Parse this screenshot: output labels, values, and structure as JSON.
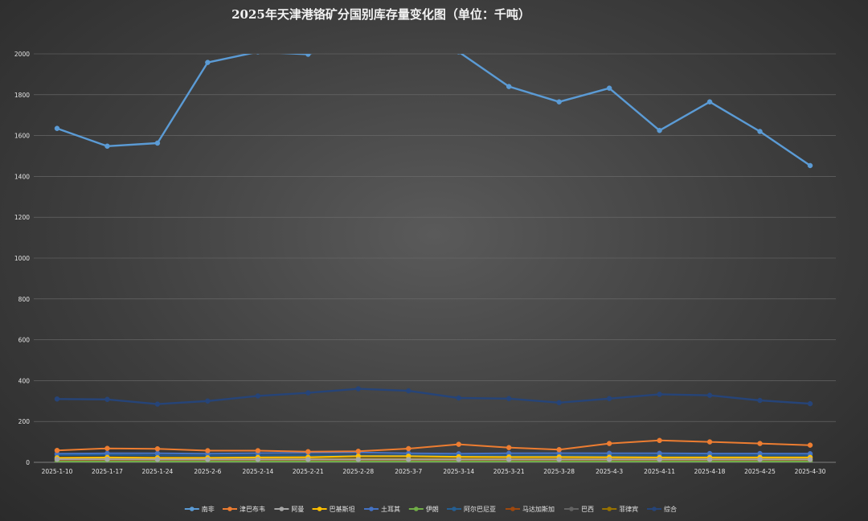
{
  "chart_data": {
    "type": "line",
    "title": "2025年天津港铬矿分国别库存量变化图（单位：千吨）",
    "xlabel": "",
    "ylabel": "",
    "ylim": [
      0,
      2000
    ],
    "yticks": [
      0,
      200,
      400,
      600,
      800,
      1000,
      1200,
      1400,
      1600,
      1800,
      2000
    ],
    "grid": true,
    "legend_position": "bottom",
    "categories": [
      "2025-1-10",
      "2025-1-17",
      "2025-1-24",
      "2025-2-6",
      "2025-2-14",
      "2025-2-21",
      "2025-2-28",
      "2025-3-7",
      "2025-3-14",
      "2025-3-21",
      "2025-3-28",
      "2025-4-3",
      "2025-4-11",
      "2025-4-18",
      "2025-4-25",
      "2025-4-30"
    ],
    "series": [
      {
        "name": "南非",
        "color": "#5b9bd5",
        "values": [
          1635,
          1548,
          1563,
          1958,
          2010,
          1998,
          2080,
          2060,
          2010,
          1840,
          1765,
          1832,
          1625,
          1765,
          1620,
          1453
        ]
      },
      {
        "name": "津巴布韦",
        "color": "#ed7d31",
        "values": [
          58,
          68,
          66,
          57,
          57,
          52,
          54,
          67,
          88,
          72,
          62,
          92,
          107,
          100,
          92,
          84
        ]
      },
      {
        "name": "阿曼",
        "color": "#a5a5a5",
        "values": [
          15,
          15,
          14,
          14,
          14,
          14,
          14,
          14,
          14,
          14,
          14,
          14,
          14,
          14,
          14,
          14
        ]
      },
      {
        "name": "巴基斯坦",
        "color": "#ffc000",
        "values": [
          22,
          24,
          22,
          22,
          24,
          25,
          30,
          30,
          27,
          26,
          26,
          25,
          24,
          24,
          24,
          24
        ]
      },
      {
        "name": "土耳其",
        "color": "#4472c4",
        "values": [
          42,
          44,
          44,
          42,
          45,
          47,
          48,
          44,
          42,
          44,
          45,
          44,
          44,
          43,
          43,
          42
        ]
      },
      {
        "name": "伊朗",
        "color": "#70ad47",
        "values": [
          4,
          4,
          4,
          4,
          4,
          4,
          4,
          4,
          4,
          4,
          4,
          4,
          4,
          4,
          4,
          4
        ]
      },
      {
        "name": "阿尔巴尼亚",
        "color": "#255e91",
        "values": [
          35,
          36,
          34,
          33,
          34,
          35,
          35,
          35,
          34,
          34,
          34,
          34,
          34,
          34,
          34,
          34
        ]
      },
      {
        "name": "马达加斯加",
        "color": "#9e480e",
        "values": [
          9,
          9,
          9,
          9,
          9,
          9,
          9,
          9,
          9,
          9,
          9,
          9,
          9,
          9,
          9,
          9
        ]
      },
      {
        "name": "巴西",
        "color": "#636363",
        "values": [
          12,
          12,
          12,
          12,
          12,
          12,
          12,
          12,
          12,
          12,
          12,
          12,
          12,
          12,
          12,
          12
        ]
      },
      {
        "name": "菲律宾",
        "color": "#997300",
        "values": [
          18,
          18,
          18,
          18,
          18,
          18,
          18,
          18,
          18,
          18,
          18,
          18,
          18,
          18,
          18,
          18
        ]
      },
      {
        "name": "综合",
        "color": "#264478",
        "values": [
          310,
          308,
          285,
          300,
          325,
          340,
          360,
          350,
          315,
          312,
          292,
          312,
          333,
          328,
          303,
          287
        ]
      }
    ]
  }
}
